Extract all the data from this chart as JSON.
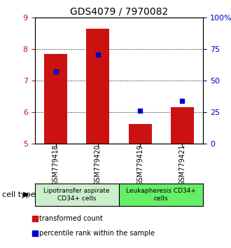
{
  "title": "GDS4079 / 7970082",
  "samples": [
    "GSM779418",
    "GSM779420",
    "GSM779419",
    "GSM779421"
  ],
  "red_values": [
    7.85,
    8.63,
    5.62,
    6.15
  ],
  "blue_values": [
    7.28,
    7.82,
    6.05,
    6.36
  ],
  "ylim": [
    5,
    9
  ],
  "yticks": [
    5,
    6,
    7,
    8,
    9
  ],
  "y2lim": [
    0,
    100
  ],
  "y2ticks": [
    0,
    25,
    50,
    75,
    100
  ],
  "y2ticklabels": [
    "0",
    "25",
    "50",
    "75",
    "100%"
  ],
  "bar_color": "#cc1111",
  "dot_color": "#0000cc",
  "bar_bottom": 5.0,
  "legend_red": "transformed count",
  "legend_blue": "percentile rank within the sample",
  "cell_type_label": "cell type",
  "left_tick_color": "#cc1111",
  "right_tick_color": "#0000cc",
  "group1_label": "Lipotransfer aspirate\nCD34+ cells",
  "group2_label": "Leukapheresis CD34+\ncells",
  "group1_color": "#cceecc",
  "group2_color": "#66ee66",
  "xtick_bg_color": "#c8c8c8",
  "plot_bg_color": "#ffffff"
}
